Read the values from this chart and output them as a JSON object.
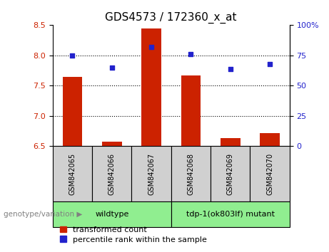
{
  "title": "GDS4573 / 172360_x_at",
  "samples": [
    "GSM842065",
    "GSM842066",
    "GSM842067",
    "GSM842068",
    "GSM842069",
    "GSM842070"
  ],
  "bar_values": [
    7.65,
    6.57,
    8.45,
    7.67,
    6.63,
    6.72
  ],
  "percentile_values": [
    75,
    65,
    82,
    76,
    64,
    68
  ],
  "bar_color": "#cc2200",
  "percentile_color": "#2222cc",
  "ylim_left": [
    6.5,
    8.5
  ],
  "ylim_right": [
    0,
    100
  ],
  "yticks_left": [
    6.5,
    7.0,
    7.5,
    8.0,
    8.5
  ],
  "yticks_right": [
    0,
    25,
    50,
    75,
    100
  ],
  "ytick_labels_right": [
    "0",
    "25",
    "50",
    "75",
    "100%"
  ],
  "grid_values": [
    7.0,
    7.5,
    8.0
  ],
  "wildtype_label": "wildtype",
  "mutant_label": "tdp-1(ok803lf) mutant",
  "genotype_label": "genotype/variation",
  "legend_bar_label": "transformed count",
  "legend_percentile_label": "percentile rank within the sample",
  "sample_box_color": "#d0d0d0",
  "genotype_box_color": "#90ee90",
  "bar_width": 0.5,
  "title_fontsize": 11,
  "tick_fontsize": 8,
  "sample_fontsize": 7,
  "geno_fontsize": 8,
  "legend_fontsize": 8
}
